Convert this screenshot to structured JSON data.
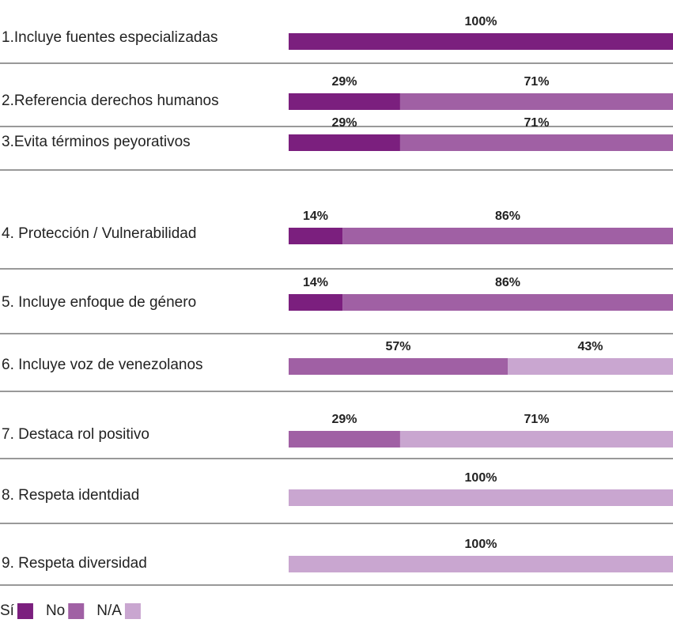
{
  "chart_data": {
    "type": "stacked-bar-horizontal",
    "categories": [
      "1.Incluye fuentes especializadas",
      "2.Referencia derechos humanos",
      "3.Evita términos peyorativos",
      "4. Protección / Vulnerabilidad",
      "5. Incluye enfoque de género",
      "6. Incluye voz de venezolanos",
      "7. Destaca rol positivo",
      "8. Respeta identdiad",
      "9. Respeta diversidad"
    ],
    "series": [
      {
        "name": "Sí",
        "color": "#7b1f7e",
        "values": [
          100,
          29,
          29,
          14,
          14,
          null,
          null,
          null,
          null
        ],
        "value_labels": [
          "100%",
          "29%",
          "29%",
          "14%",
          "14%",
          null,
          null,
          null,
          null
        ]
      },
      {
        "name": "No",
        "color": "#a060a4",
        "values": [
          null,
          71,
          71,
          86,
          86,
          57,
          29,
          null,
          null
        ],
        "value_labels": [
          null,
          "71%",
          "71%",
          "86%",
          "86%",
          "57%",
          "29%",
          null,
          null
        ]
      },
      {
        "name": "N/A",
        "color": "#c9a6d0",
        "values": [
          null,
          null,
          null,
          null,
          null,
          43,
          71,
          100,
          100
        ],
        "value_labels": [
          null,
          null,
          null,
          null,
          null,
          "43%",
          "71%",
          "100%",
          "100%"
        ]
      }
    ],
    "xlim": [
      0,
      100
    ]
  }
}
